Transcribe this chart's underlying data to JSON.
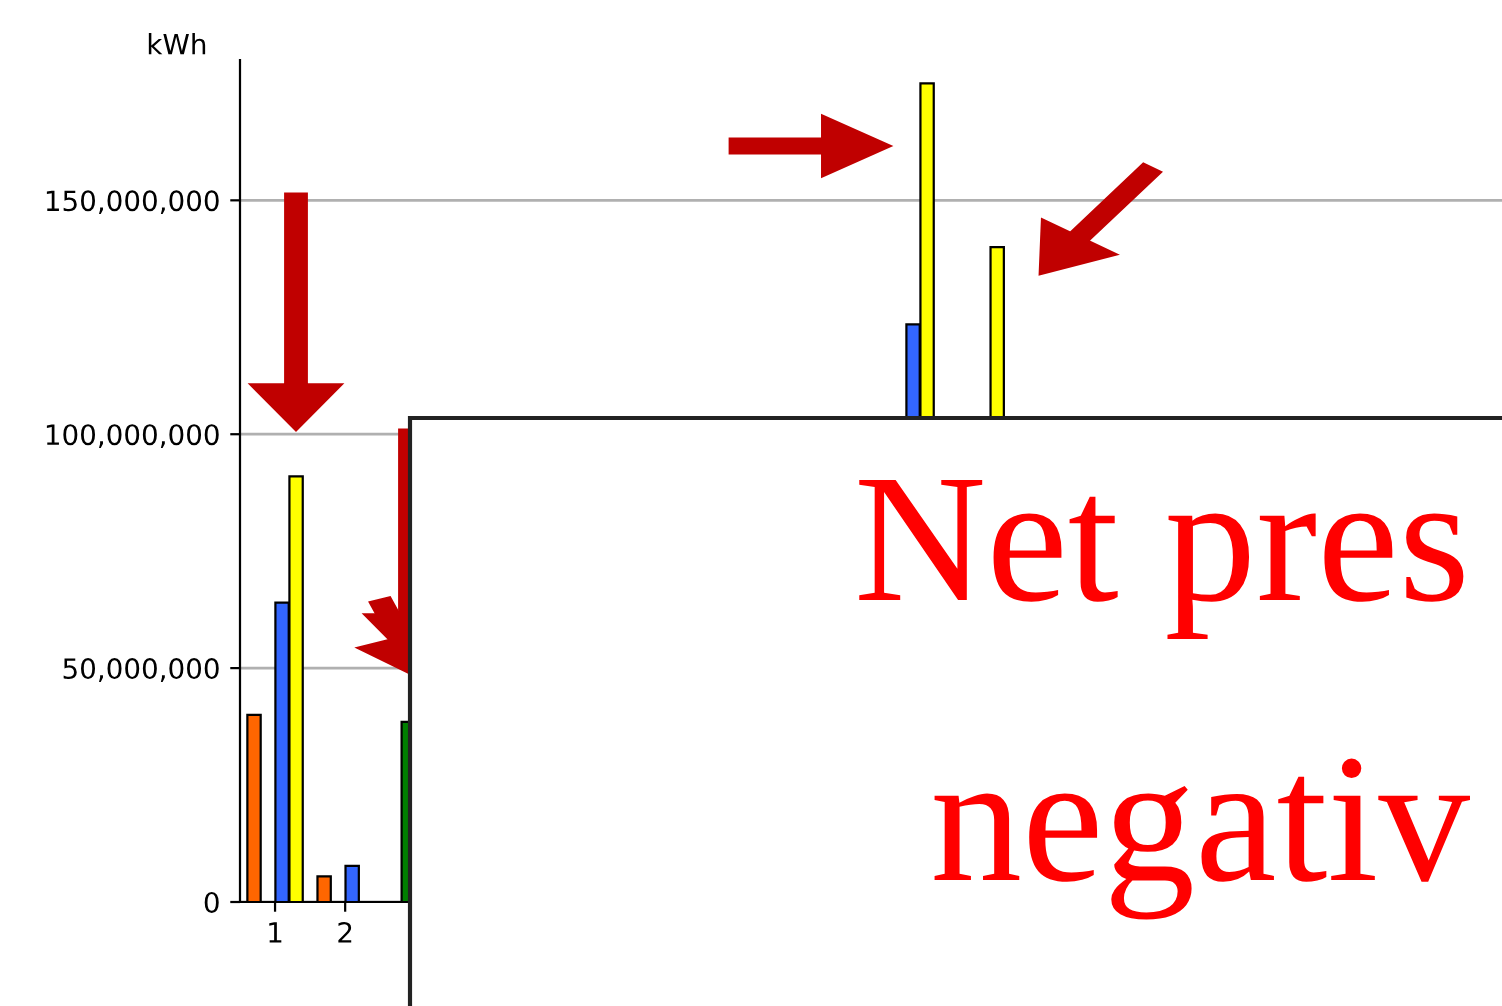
{
  "chart_data": {
    "type": "bar",
    "ylabel": "kWh",
    "categories": [
      "1",
      "2",
      null,
      null,
      null,
      null,
      null,
      null,
      null,
      null,
      null,
      null,
      null,
      null,
      null,
      null,
      null,
      null
    ],
    "series": [
      {
        "color": "#ff6600",
        "values": [
          40000000,
          5500000,
          null,
          null,
          null,
          null,
          null,
          null,
          null,
          null,
          null,
          null,
          null,
          null,
          null,
          null,
          null,
          null
        ]
      },
      {
        "color": "#008000",
        "values": [
          null,
          null,
          38500000,
          null,
          null,
          null,
          null,
          null,
          null,
          null,
          null,
          null,
          null,
          null,
          null,
          null,
          null,
          null
        ]
      },
      {
        "color": "#3366ff",
        "values": [
          64000000,
          7700000,
          null,
          null,
          null,
          null,
          null,
          null,
          null,
          123500000,
          null,
          null,
          null,
          null,
          null,
          null,
          null,
          null
        ]
      },
      {
        "color": "#ffff00",
        "values": [
          91000000,
          null,
          null,
          null,
          null,
          null,
          null,
          null,
          null,
          175000000,
          140000000,
          null,
          null,
          null,
          null,
          null,
          null,
          null
        ]
      }
    ],
    "ylim": [
      0,
      180000000
    ],
    "yticks": [
      0,
      {
        "value": 50000000,
        "label": "50,000,000"
      },
      {
        "value": 100000000,
        "label": "100,000,000"
      },
      {
        "value": 150000000,
        "label": "150,000,000"
      }
    ],
    "grid": "y",
    "annotations": [
      "Net pres",
      "negativ"
    ]
  }
}
